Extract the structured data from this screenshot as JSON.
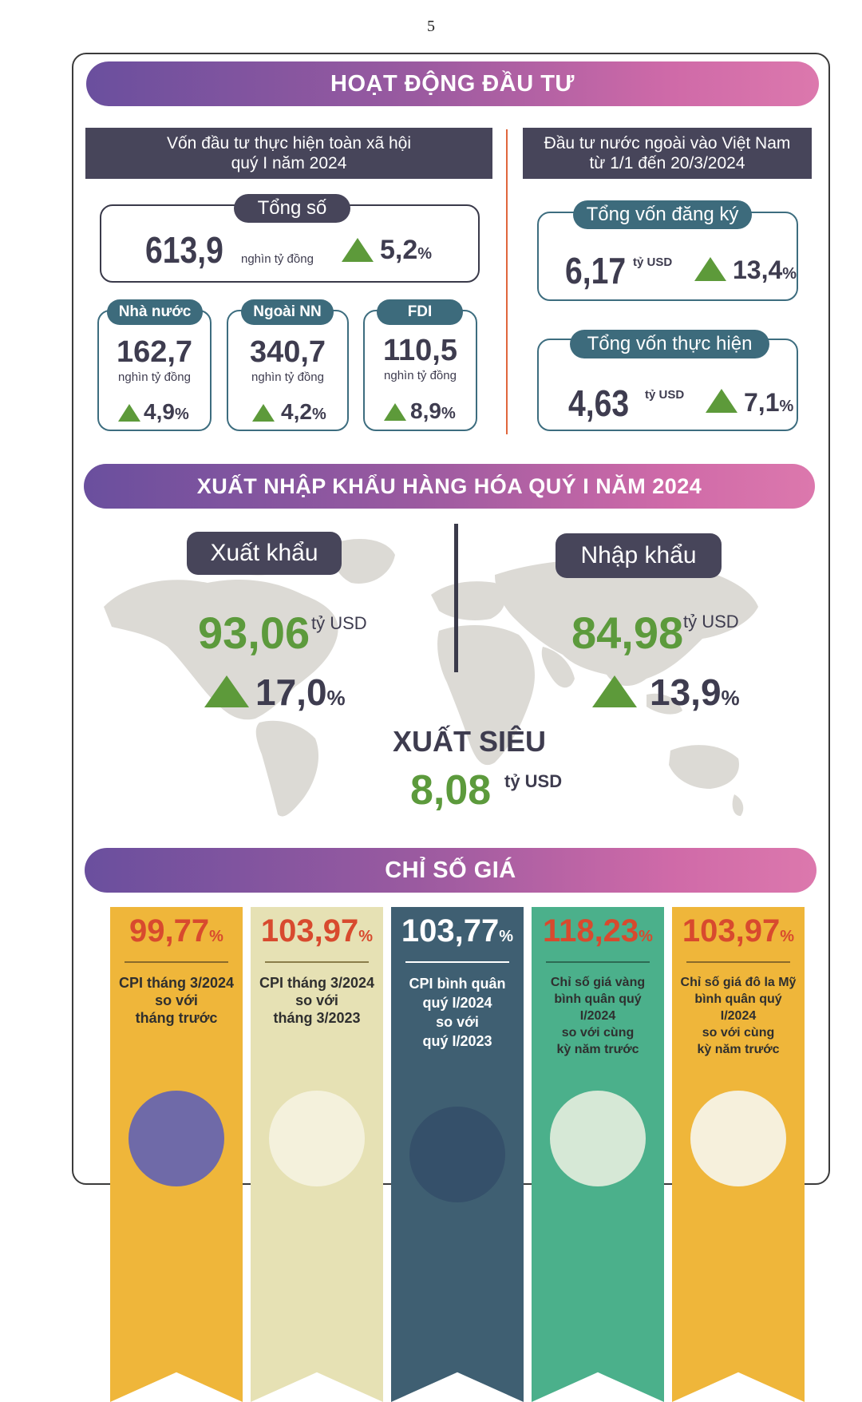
{
  "page_number": "5",
  "investment": {
    "banner": "HOẠT ĐỘNG ĐẦU TƯ",
    "total_capital": {
      "header_line1": "Vốn đầu tư thực hiện toàn xã hội",
      "header_line2": "quý I năm 2024",
      "total_label": "Tổng số",
      "total_value": "613,9",
      "total_unit": "nghìn tỷ đồng",
      "total_growth": "5,2",
      "pct_sign": "%",
      "sectors": [
        {
          "label": "Nhà nước",
          "value": "162,7",
          "unit": "nghìn tỷ đồng",
          "growth": "4,9"
        },
        {
          "label": "Ngoài NN",
          "value": "340,7",
          "unit": "nghìn tỷ đồng",
          "growth": "4,2"
        },
        {
          "label": "FDI",
          "value": "110,5",
          "unit": "nghìn tỷ đồng",
          "growth": "8,9"
        }
      ]
    },
    "fdi": {
      "header_line1": "Đầu tư nước ngoài vào Việt Nam",
      "header_line2": "từ 1/1 đến 20/3/2024",
      "registered": {
        "label": "Tổng vốn đăng ký",
        "value": "6,17",
        "unit": "tỷ USD",
        "growth": "13,4"
      },
      "implemented": {
        "label": "Tổng vốn thực hiện",
        "value": "4,63",
        "unit": "tỷ USD",
        "growth": "7,1"
      }
    }
  },
  "trade": {
    "banner": "XUẤT NHẬP KHẨU HÀNG HÓA QUÝ I NĂM 2024",
    "export": {
      "label": "Xuất khẩu",
      "value": "93,06",
      "unit": "tỷ USD",
      "growth": "17,0"
    },
    "import": {
      "label": "Nhập khẩu",
      "value": "84,98",
      "unit": "tỷ USD",
      "growth": "13,9"
    },
    "surplus": {
      "label": "XUẤT SIÊU",
      "value": "8,08",
      "unit": "tỷ USD"
    }
  },
  "price": {
    "banner": "CHỈ SỐ GIÁ",
    "cards": [
      {
        "value": "99,77",
        "text": [
          "CPI tháng 3/2024",
          "so với",
          "tháng trước"
        ],
        "bg": "#efb63a",
        "value_color": "#d84a2e",
        "icon": "business-chart-icon"
      },
      {
        "value": "103,97",
        "text": [
          "CPI tháng 3/2024",
          "so với",
          "tháng 3/2023"
        ],
        "bg": "#e6e1b4",
        "value_color": "#d84a2e",
        "icon": "growth-chart-icon"
      },
      {
        "value": "103,77",
        "text": [
          "CPI bình quân",
          "quý I/2024",
          "so với",
          "quý I/2023"
        ],
        "bg": "#3f5f72",
        "value_color": "#ffffff",
        "icon": "coin-chart-icon"
      },
      {
        "value": "118,23",
        "text": [
          "Chỉ số giá vàng",
          "bình quân quý I/2024",
          "so với cùng",
          "kỳ năm trước"
        ],
        "bg": "#4bb08b",
        "value_color": "#d84a2e",
        "icon": "gold-bars-icon"
      },
      {
        "value": "103,97",
        "text": [
          "Chỉ số giá đô la Mỹ",
          "bình quân quý I/2024",
          "so với cùng",
          "kỳ năm trước"
        ],
        "bg": "#efb63a",
        "value_color": "#d84a2e",
        "icon": "dollar-stack-icon"
      }
    ]
  }
}
